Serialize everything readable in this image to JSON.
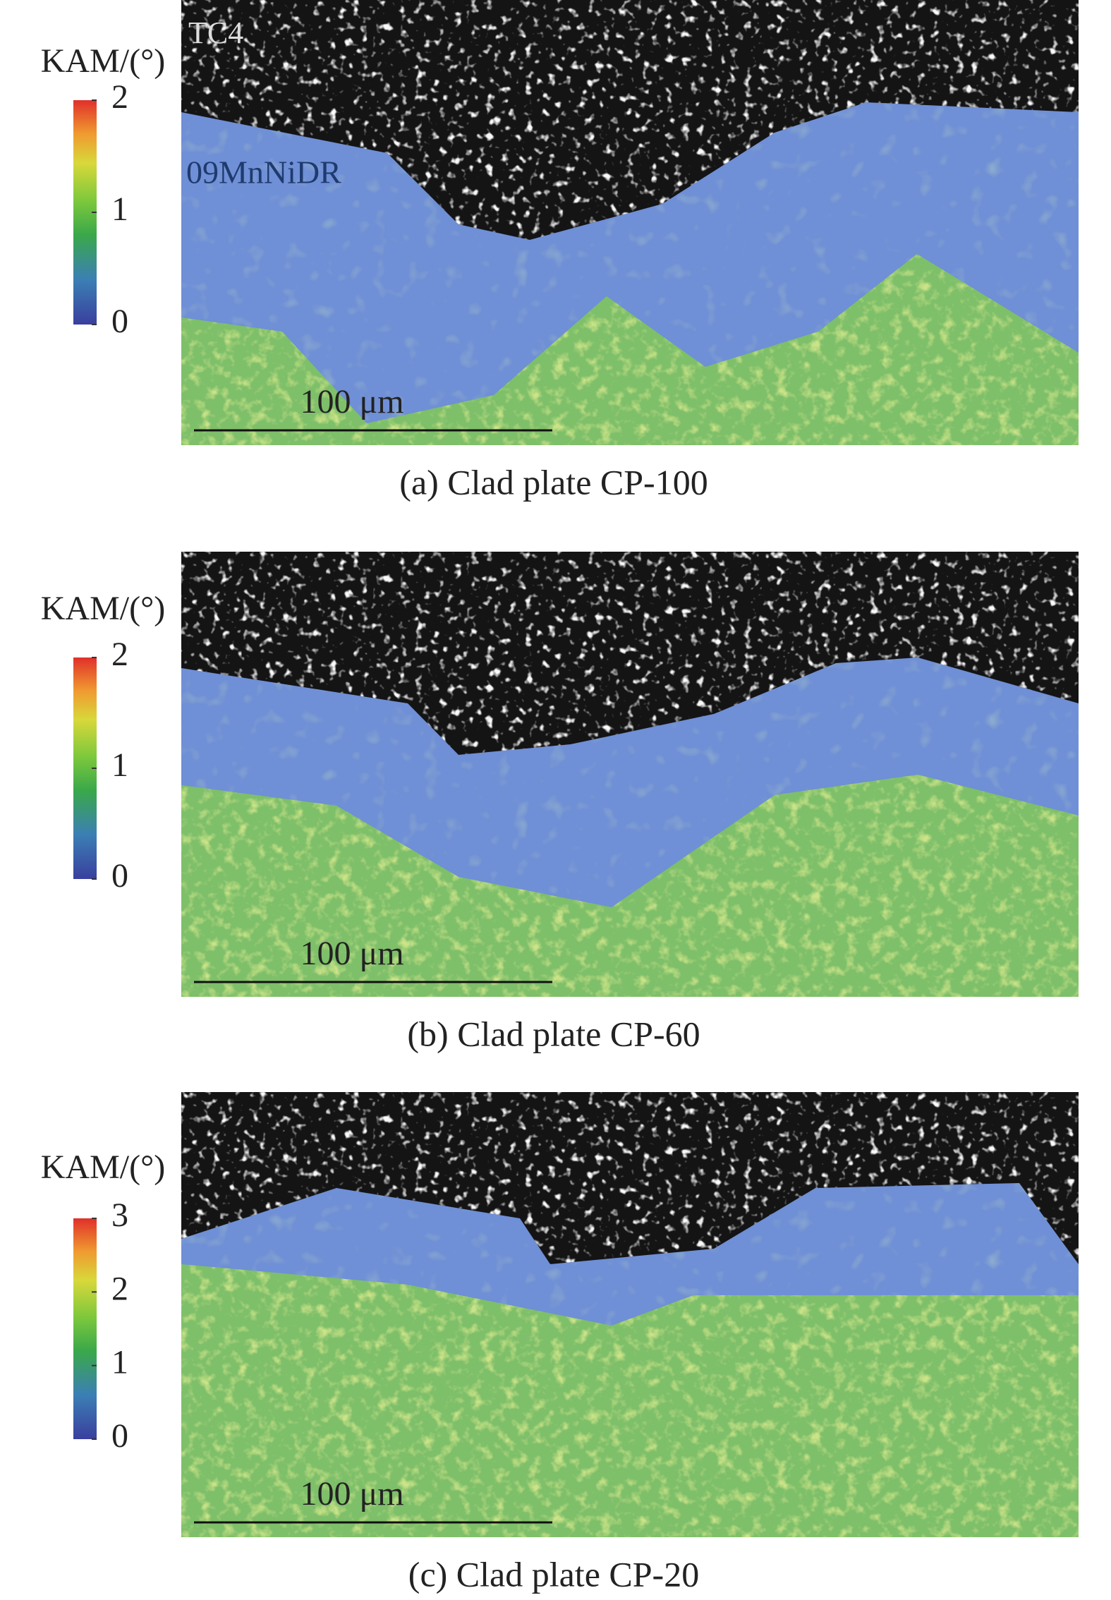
{
  "panels": [
    {
      "caption": "(a) Clad plate CP-100",
      "colorbar": {
        "label": "KAM/(°)",
        "ticks": [
          0,
          1,
          2
        ]
      },
      "scale_bar": "100 μm",
      "labels": [
        "TC4",
        "09MnNiDR"
      ]
    },
    {
      "caption": "(b) Clad plate CP-60",
      "colorbar": {
        "label": "KAM/(°)",
        "ticks": [
          0,
          1,
          2
        ]
      },
      "scale_bar": "100 μm"
    },
    {
      "caption": "(c) Clad plate CP-20",
      "colorbar": {
        "label": "KAM/(°)",
        "ticks": [
          0,
          1,
          2,
          3
        ]
      },
      "scale_bar": "100 μm"
    }
  ]
}
